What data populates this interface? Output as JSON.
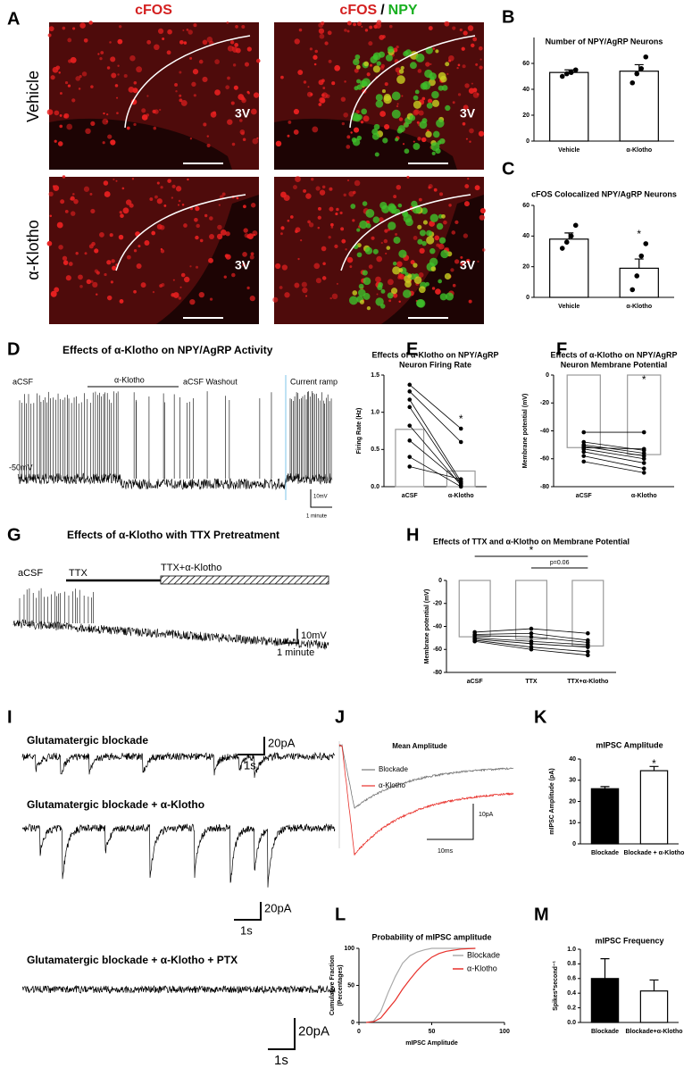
{
  "panel_labels": [
    "A",
    "B",
    "C",
    "D",
    "E",
    "F",
    "G",
    "H",
    "I",
    "J",
    "K",
    "L",
    "M"
  ],
  "microscopy": {
    "column_1_title": "cFOS",
    "column_2_title": {
      "cfos": "cFOS",
      "separator": "/",
      "npy": "NPY"
    },
    "row_labels": [
      "Vehicle",
      "α-Klotho"
    ],
    "region_label": "3V"
  },
  "trace_d": {
    "title": "Effects of α-Klotho on NPY/AgRP Activity",
    "acsf": "aCSF",
    "klotho": "α-Klotho",
    "washout": "aCSF Washout",
    "ramp": "Current ramp",
    "potential": "-50mV",
    "scale_y": "10mV",
    "scale_x": "1 minute"
  },
  "trace_g": {
    "title": "Effects of α-Klotho with TTX Pretreatment",
    "acsf": "aCSF",
    "ttx": "TTX",
    "ttx_klotho": "TTX+α-Klotho",
    "scale_y": "10mV",
    "scale_x": "1 minute"
  },
  "trace_i": [
    {
      "title": "Glutamatergic blockade",
      "scale_y": "20pA",
      "scale_x": "1s"
    },
    {
      "title": "Glutamatergic blockade + α-Klotho",
      "scale_y": "20pA",
      "scale_x": "1s"
    },
    {
      "title": "Glutamatergic blockade + α-Klotho + PTX",
      "scale_y": "20pA",
      "scale_x": "1s"
    }
  ],
  "trace_j": {
    "title": "Mean Amplitude",
    "legend": [
      "Blockade",
      "α-Klotho"
    ],
    "colors": [
      "#777777",
      "#e8302a"
    ],
    "scale_y": "10pA",
    "scale_x": "10ms"
  },
  "chart_data": [
    {
      "type": "bar",
      "title": "Number of NPY/AgRP Neurons",
      "categories": [
        "Vehicle",
        "α-Klotho"
      ],
      "values": [
        53,
        54
      ],
      "errors": [
        2,
        5
      ],
      "points": [
        [
          50,
          52,
          53,
          55
        ],
        [
          45,
          52,
          56,
          65
        ]
      ],
      "bar_colors": [
        "#ffffff",
        "#ffffff"
      ],
      "edge_color": "#000000",
      "ylim": [
        0,
        80
      ],
      "yticks": [
        0,
        20,
        40,
        60
      ]
    },
    {
      "type": "bar",
      "title": "cFOS Colocalized NPY/AgRP Neurons",
      "categories": [
        "Vehicle",
        "α-Klotho"
      ],
      "values": [
        38,
        19
      ],
      "errors": [
        4,
        6
      ],
      "points": [
        [
          32,
          36,
          40,
          47
        ],
        [
          5,
          14,
          27,
          35
        ]
      ],
      "bar_colors": [
        "#ffffff",
        "#ffffff"
      ],
      "edge_color": "#000000",
      "ylim": [
        0,
        60
      ],
      "yticks": [
        0,
        20,
        40,
        60
      ],
      "annotations": [
        "*"
      ]
    },
    {
      "type": "bar",
      "title": [
        "Effects of α-Klotho on NPY/AgRP",
        "Neuron Firing Rate"
      ],
      "ylabel": "Firing  Rate (Hz)",
      "categories": [
        "aCSF",
        "α-Klotho"
      ],
      "values": [
        0.77,
        0.21
      ],
      "lines": [
        [
          1.37,
          0.78
        ],
        [
          1.28,
          0.6
        ],
        [
          1.17,
          0.07
        ],
        [
          1.07,
          0.04
        ],
        [
          0.82,
          0.02
        ],
        [
          0.62,
          0.05
        ],
        [
          0.4,
          0
        ],
        [
          0.27,
          0.1
        ]
      ],
      "bar_colors": [
        "#ffffff",
        "#ffffff"
      ],
      "edge_color": "#999999",
      "ylim": [
        0,
        1.5
      ],
      "yticks": [
        {
          "value": 0,
          "label": "0.0"
        },
        0.5,
        {
          "value": 1,
          "label": "1.0"
        },
        1.5
      ],
      "annotations": [
        "*"
      ]
    },
    {
      "type": "bar",
      "title": [
        "Effects of α-Klotho on NPY/AgRP",
        "Neuron Membrane Potential"
      ],
      "ylabel": "Membrane potential (mV)",
      "categories": [
        "aCSF",
        "α-Klotho"
      ],
      "values": [
        -52,
        -57
      ],
      "lines": [
        [
          -41,
          -41
        ],
        [
          -48,
          -54
        ],
        [
          -50,
          -56
        ],
        [
          -51,
          -58
        ],
        [
          -52,
          -53
        ],
        [
          -53,
          -60
        ],
        [
          -55,
          -63
        ],
        [
          -58,
          -67
        ],
        [
          -62,
          -70
        ]
      ],
      "bar_colors": [
        "#ffffff",
        "#ffffff"
      ],
      "edge_color": "#999999",
      "ylim": [
        -80,
        0
      ],
      "yticks": [
        0,
        -20,
        -40,
        -60,
        -80
      ],
      "annotations": [
        "*"
      ]
    },
    {
      "type": "bar",
      "title": "Effects of TTX and α-Klotho on Membrane  Potential",
      "ylabel": "Membrane potential (mV)",
      "categories": [
        "aCSF",
        "TTX",
        "TTX+α-Klotho"
      ],
      "values": [
        -49,
        -51,
        -57
      ],
      "lines": [
        [
          -45,
          -42,
          -46
        ],
        [
          -47,
          -46,
          -52
        ],
        [
          -48,
          -49,
          -54
        ],
        [
          -50,
          -53,
          -56
        ],
        [
          -51,
          -55,
          -58
        ],
        [
          -52,
          -58,
          -62
        ],
        [
          -53,
          -60,
          -65
        ]
      ],
      "bar_colors": [
        "#ffffff",
        "#ffffff",
        "#ffffff"
      ],
      "edge_color": "#999999",
      "ylim": [
        -80,
        0
      ],
      "yticks": [
        0,
        -20,
        -40,
        -60,
        -80
      ],
      "annotations": [
        "*",
        "p=0.06"
      ]
    },
    {
      "type": "bar",
      "title": "mIPSC Amplitude",
      "ylabel": "mIPSC  Amplitude  (pA)",
      "categories": [
        "Blockade",
        "Blockade + α-Klotho"
      ],
      "values": [
        26,
        34.5
      ],
      "errors": [
        1,
        2
      ],
      "bar_colors": [
        "#000000",
        "#ffffff"
      ],
      "edge_color": "#000000",
      "ylim": [
        0,
        40
      ],
      "yticks": [
        0,
        10,
        20,
        30,
        40
      ],
      "annotations": [
        "*"
      ]
    },
    {
      "type": "line",
      "title": "Probability of mIPSC amplitude",
      "xlabel": "mIPSC Amplitude",
      "ylabel": [
        "Cumulative Fraction",
        "(Percentages)"
      ],
      "x": [
        5,
        10,
        15,
        20,
        25,
        30,
        35,
        40,
        45,
        50,
        55,
        60,
        70,
        80
      ],
      "series": [
        {
          "name": "Blockade",
          "color": "#aaaaaa",
          "values": [
            0,
            2,
            15,
            40,
            62,
            80,
            90,
            95,
            98,
            100,
            100,
            100,
            100,
            100
          ]
        },
        {
          "name": "α-Klotho",
          "color": "#e8302a",
          "values": [
            0,
            1,
            6,
            18,
            30,
            45,
            58,
            70,
            80,
            88,
            93,
            96,
            99,
            100
          ]
        }
      ],
      "xlim": [
        0,
        100
      ],
      "xticks": [
        0,
        50,
        100
      ],
      "ylim": [
        0,
        100
      ],
      "yticks": [
        0,
        50,
        100
      ]
    },
    {
      "type": "bar",
      "title": "mIPSC Frequency",
      "ylabel": "Spikes*second⁻¹",
      "categories": [
        "Blockade",
        "Blockade+α-Klotho"
      ],
      "values": [
        0.6,
        0.43
      ],
      "errors": [
        0.27,
        0.15
      ],
      "bar_colors": [
        "#000000",
        "#ffffff"
      ],
      "edge_color": "#000000",
      "ylim": [
        0,
        1
      ],
      "yticks": [
        {
          "value": 0,
          "label": "0.0"
        },
        0.2,
        0.4,
        0.6,
        0.8,
        {
          "value": 1,
          "label": "1.0"
        }
      ]
    }
  ]
}
